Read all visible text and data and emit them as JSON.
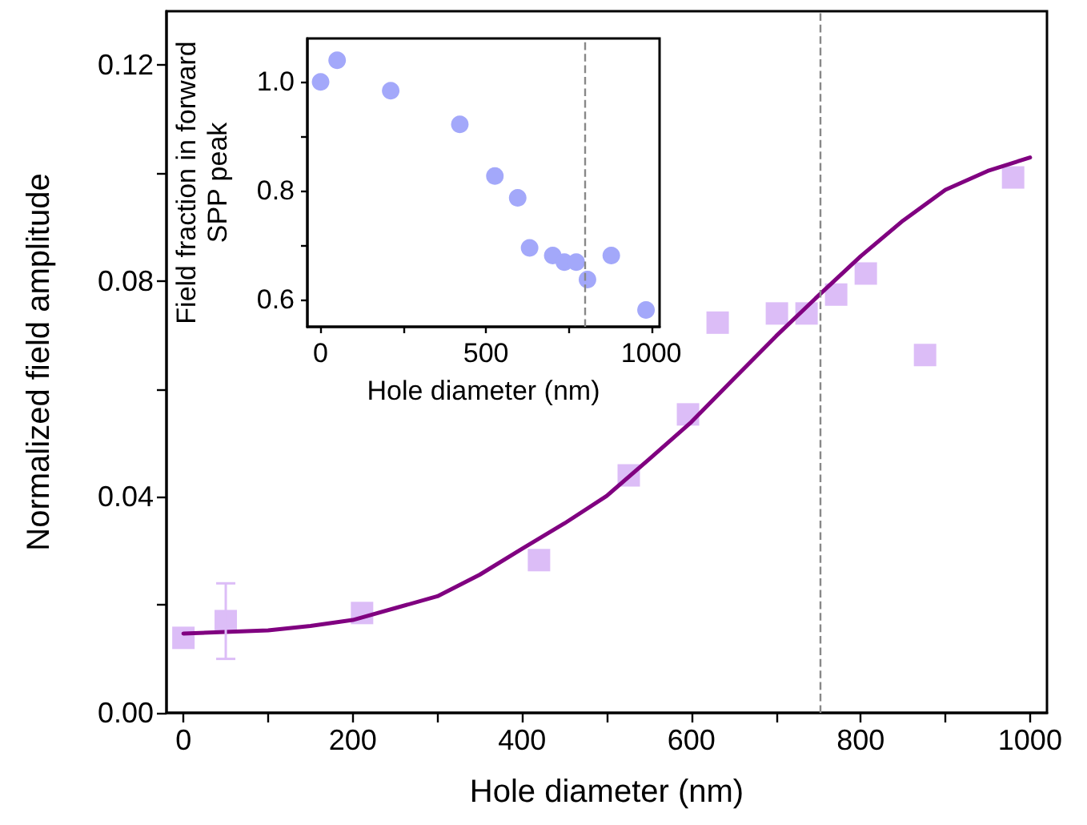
{
  "chart_data": [
    {
      "type": "scatter",
      "xlabel": "Hole diameter (nm)",
      "ylabel": "Normalized field amplitude",
      "xlim": [
        -20,
        1020
      ],
      "ylim": [
        0,
        0.13
      ],
      "xticks": [
        0,
        {
          "value": 100,
          "label": null
        },
        200,
        {
          "value": 300,
          "label": null
        },
        400,
        {
          "value": 500,
          "label": null
        },
        600,
        {
          "value": 700,
          "label": null
        },
        800,
        {
          "value": 900,
          "label": null
        },
        1000
      ],
      "yticks": [
        {
          "value": 0,
          "label": "0.00"
        },
        {
          "value": 0.02,
          "label": null
        },
        0.04,
        {
          "value": 0.06,
          "label": null
        },
        0.08,
        {
          "value": 0.1,
          "label": null
        },
        0.12
      ],
      "grid": false,
      "series": [
        {
          "type": "scatter",
          "marker": "square",
          "color": "#dcbdf7",
          "x": [
            0,
            50,
            211,
            420,
            526,
            596,
            631,
            701,
            736,
            771,
            806,
            876,
            980
          ],
          "values": [
            0.0139,
            0.017,
            0.0185,
            0.0283,
            0.044,
            0.0553,
            0.0723,
            0.074,
            0.074,
            0.0775,
            0.0814,
            0.0663,
            0.0992
          ],
          "errors": [
            null,
            [
              0.01,
              0.024
            ],
            null,
            null,
            null,
            null,
            null,
            null,
            null,
            null,
            null,
            null,
            null
          ]
        },
        {
          "type": "line",
          "marker": "none",
          "line_style": "solid",
          "color": "#800080",
          "x": [
            0,
            100,
            150,
            200,
            250,
            300,
            350,
            400,
            450,
            500,
            550,
            600,
            650,
            700,
            750,
            800,
            850,
            900,
            950,
            1000
          ],
          "values": [
            0.0147,
            0.0153,
            0.0161,
            0.0172,
            0.0194,
            0.0216,
            0.0256,
            0.0304,
            0.0351,
            0.0402,
            0.047,
            0.0539,
            0.0619,
            0.0698,
            0.0773,
            0.0846,
            0.0912,
            0.0969,
            0.1004,
            0.1029
          ]
        }
      ],
      "ref_lines": [
        {
          "axis": "x",
          "value": 752,
          "color": "#888888",
          "line_style": "dashed"
        }
      ]
    },
    {
      "type": "scatter",
      "xlabel": "Hole diameter (nm)",
      "ylabel": "Field fraction in forward\nSPP peak",
      "xlim": [
        -40,
        1025
      ],
      "ylim": [
        0.55,
        1.08
      ],
      "xticks": [
        0,
        {
          "value": 250,
          "label": null
        },
        500,
        {
          "value": 750,
          "label": null
        },
        1000
      ],
      "yticks": [
        {
          "value": 0.6,
          "label": "0.6"
        },
        {
          "value": 0.7,
          "label": null
        },
        {
          "value": 0.8,
          "label": "0.8"
        },
        {
          "value": 0.9,
          "label": null
        },
        {
          "value": 1.0,
          "label": "1.0"
        }
      ],
      "grid": false,
      "series": [
        {
          "type": "scatter",
          "marker": "circle",
          "color": "#a3a8fa",
          "x": [
            0,
            50,
            212,
            421,
            527,
            596,
            632,
            702,
            737,
            773,
            807,
            879,
            984
          ],
          "values": [
            1.0,
            1.04,
            0.984,
            0.922,
            0.827,
            0.787,
            0.695,
            0.681,
            0.669,
            0.669,
            0.637,
            0.681,
            0.581
          ]
        }
      ],
      "ref_lines": [
        {
          "axis": "x",
          "value": 800,
          "color": "#888888",
          "line_style": "dashed"
        }
      ]
    }
  ]
}
